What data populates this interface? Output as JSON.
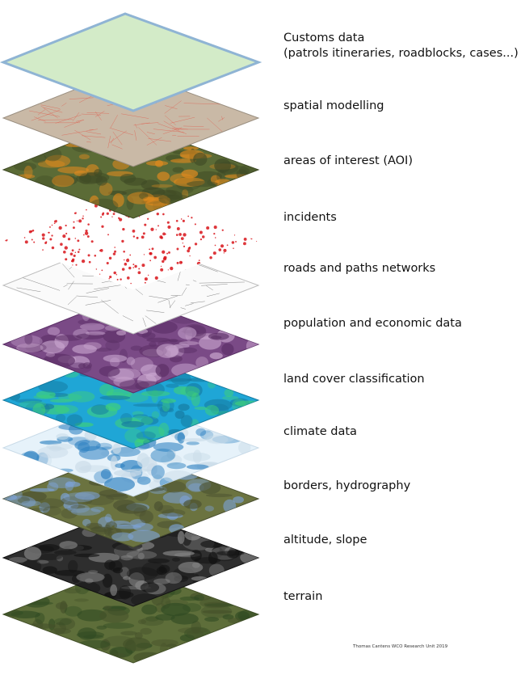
{
  "layers": [
    {
      "id": "customs",
      "label_line1": "Customs data",
      "label_line2": "(patrols itineraries, roadblocks, cases...)",
      "base": "#d3ebc8",
      "accent": "#bfe0b0",
      "edge": "#8fb4d4"
    },
    {
      "id": "spatial",
      "label": "spatial modelling",
      "base": "#c9b9a6",
      "accent": "#e05a4a",
      "edge": "#9a8f80"
    },
    {
      "id": "aoi",
      "label": "areas of interest (AOI)",
      "base": "#5b6b36",
      "accent": "#e08a1e",
      "edge": "#3f4a25"
    },
    {
      "id": "incidents",
      "label": "incidents",
      "base": "#ffffff",
      "accent": "#d8141a",
      "edge": "#ffffff"
    },
    {
      "id": "roads",
      "label": "roads and paths networks",
      "base": "#fafafa",
      "accent": "#555555",
      "edge": "#bdbdbd"
    },
    {
      "id": "population",
      "label": "population and economic data",
      "base": "#7a4a86",
      "accent": "#c9a6cf",
      "edge": "#5b2f66"
    },
    {
      "id": "landcover",
      "label": "land cover classification",
      "base": "#1fa6d6",
      "accent": "#3fcf7a",
      "edge": "#157aa0"
    },
    {
      "id": "climate",
      "label": "climate data",
      "base": "#e6f2fa",
      "accent": "#2a7fc0",
      "edge": "#c9dbe8"
    },
    {
      "id": "borders",
      "label": "borders, hydrography",
      "base": "#6b7340",
      "accent": "#7da3d8",
      "edge": "#4a5030"
    },
    {
      "id": "altitude",
      "label": "altitude, slope",
      "base": "#2e2e2e",
      "accent": "#8a8a8a",
      "edge": "#111111"
    },
    {
      "id": "terrain",
      "label": "terrain",
      "base": "#5e6e3a",
      "accent": "#2f4a22",
      "edge": "#45512a"
    }
  ],
  "credit": "Thomas Cantens WCO Research Unit 2019"
}
